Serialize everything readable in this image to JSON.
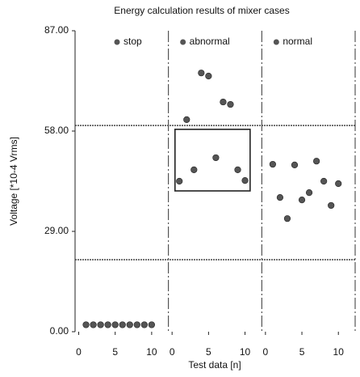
{
  "chart_data": {
    "type": "scatter",
    "title": "Energy calculation results of mixer cases",
    "xlabel": "Test data [n]",
    "ylabel": "Voltage [*10-4 Vrms]",
    "ylim": [
      0,
      87
    ],
    "yticks": [
      {
        "value": 0,
        "label": "0.00"
      },
      {
        "value": 29,
        "label": "29.00"
      },
      {
        "value": 58,
        "label": "58.00"
      },
      {
        "value": 87,
        "label": "87.00"
      }
    ],
    "xlim": [
      -0.5,
      12.3
    ],
    "xticks": [
      0,
      5,
      10
    ],
    "series": [
      {
        "name": "stop",
        "color": "#555555",
        "x": [
          1,
          2,
          3,
          4,
          5,
          6,
          7,
          8,
          9,
          10
        ],
        "values": [
          2,
          2,
          2,
          2,
          2,
          2,
          2,
          2,
          2,
          2
        ]
      },
      {
        "name": "abnormal",
        "color": "#555555",
        "x": [
          1,
          2,
          3,
          4,
          5,
          6,
          7,
          8,
          9,
          10
        ],
        "values": [
          43.5,
          61.3,
          46.8,
          74.8,
          73.9,
          50.3,
          66.4,
          65.7,
          46.8,
          43.7
        ]
      },
      {
        "name": "normal",
        "color": "#555555",
        "x": [
          1,
          2,
          3,
          4,
          5,
          6,
          7,
          8,
          9,
          10
        ],
        "values": [
          48.4,
          38.8,
          32.7,
          48.2,
          38.1,
          40.2,
          49.3,
          43.5,
          36.5,
          42.8
        ]
      }
    ],
    "hlines": [
      59.6,
      20.8
    ],
    "box": {
      "x": [
        0.4,
        10.7
      ],
      "y": [
        40.7,
        58.5
      ]
    }
  }
}
